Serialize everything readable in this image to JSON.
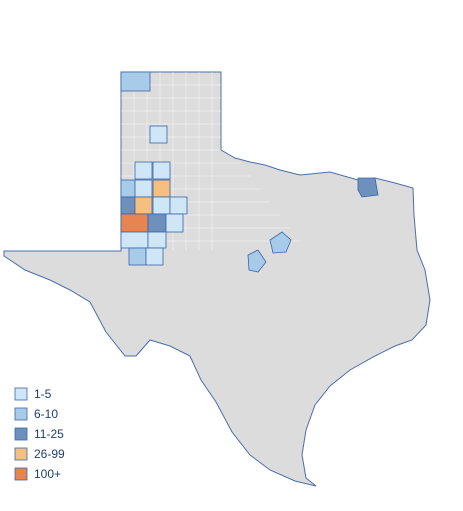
{
  "legend": [
    {
      "label": "1-5",
      "color": "#cfe6f7"
    },
    {
      "label": "6-10",
      "color": "#a8cbe9"
    },
    {
      "label": "11-25",
      "color": "#6d90bd"
    },
    {
      "label": "26-99",
      "color": "#f5bf7f"
    },
    {
      "label": "100+",
      "color": "#e8844f"
    }
  ]
}
